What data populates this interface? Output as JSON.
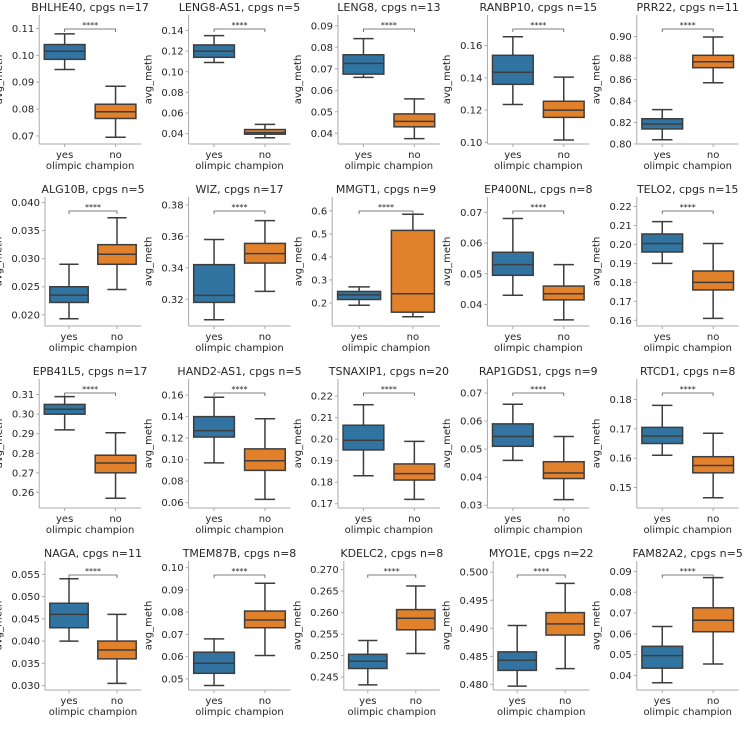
{
  "chart_data": {
    "type": "box",
    "figure_title": "",
    "xlabel": "olimpic champion",
    "ylabel": "avg_meth",
    "categories": [
      "yes",
      "no"
    ],
    "significance_label": "****",
    "colors": {
      "yes": "#3274A1",
      "no": "#E1812C",
      "edge": "#3d3d3d"
    },
    "box_stat_order": [
      "min",
      "q1",
      "median",
      "q3",
      "max"
    ],
    "panels": [
      {
        "title": "BHLHE40, cpgs n=17",
        "yticks": [
          "0.07",
          "0.08",
          "0.09",
          "0.10",
          "0.11"
        ],
        "ylim": [
          0.067,
          0.115
        ],
        "yes": [
          0.0947,
          0.0985,
          0.1015,
          0.104,
          0.108
        ],
        "no": [
          0.0695,
          0.0765,
          0.079,
          0.0818,
          0.0885
        ]
      },
      {
        "title": "LENG8-AS1, cpgs n=5",
        "yticks": [
          "0.04",
          "0.06",
          "0.08",
          "0.10",
          "0.12",
          "0.14"
        ],
        "ylim": [
          0.03,
          0.155
        ],
        "yes": [
          0.109,
          0.114,
          0.12,
          0.126,
          0.135
        ],
        "no": [
          0.036,
          0.0395,
          0.041,
          0.044,
          0.049
        ]
      },
      {
        "title": "LENG8, cpgs n=13",
        "yticks": [
          "0.04",
          "0.05",
          "0.06",
          "0.07",
          "0.08",
          "0.09"
        ],
        "ylim": [
          0.035,
          0.095
        ],
        "yes": [
          0.066,
          0.0675,
          0.0725,
          0.0765,
          0.084
        ],
        "no": [
          0.0375,
          0.043,
          0.0455,
          0.049,
          0.056
        ]
      },
      {
        "title": "RANBP10, cpgs n=15",
        "yticks": [
          "0.10",
          "0.12",
          "0.14",
          "0.16"
        ],
        "ylim": [
          0.099,
          0.179
        ],
        "yes": [
          0.1235,
          0.136,
          0.1435,
          0.154,
          0.1655
        ],
        "no": [
          0.1015,
          0.1155,
          0.12,
          0.1255,
          0.1405
        ]
      },
      {
        "title": "PRR22, cpgs n=11",
        "yticks": [
          "0.80",
          "0.82",
          "0.84",
          "0.86",
          "0.88",
          "0.90"
        ],
        "ylim": [
          0.8,
          0.92
        ],
        "yes": [
          0.804,
          0.814,
          0.8185,
          0.8235,
          0.832
        ],
        "no": [
          0.857,
          0.871,
          0.8765,
          0.8825,
          0.8995
        ]
      },
      {
        "title": "ALG10B, cpgs n=5",
        "yticks": [
          "0.020",
          "0.025",
          "0.030",
          "0.035",
          "0.040"
        ],
        "ylim": [
          0.018,
          0.041
        ],
        "yes": [
          0.0193,
          0.0222,
          0.0235,
          0.025,
          0.029
        ],
        "no": [
          0.0245,
          0.029,
          0.0308,
          0.0325,
          0.0373
        ]
      },
      {
        "title": "WIZ, cpgs n=17",
        "yticks": [
          "0.32",
          "0.34",
          "0.36",
          "0.38"
        ],
        "ylim": [
          0.303,
          0.385
        ],
        "yes": [
          0.307,
          0.318,
          0.3225,
          0.342,
          0.358
        ],
        "no": [
          0.325,
          0.343,
          0.349,
          0.3555,
          0.37
        ]
      },
      {
        "title": "MMGT1, cpgs n=9",
        "yticks": [
          "0.2",
          "0.3",
          "0.4",
          "0.5",
          "0.6"
        ],
        "ylim": [
          0.1,
          0.66
        ],
        "yes": [
          0.19,
          0.215,
          0.235,
          0.25,
          0.27
        ],
        "no": [
          0.14,
          0.16,
          0.24,
          0.515,
          0.585
        ]
      },
      {
        "title": "EP400NL, cpgs n=8",
        "yticks": [
          "0.04",
          "0.05",
          "0.06",
          "0.07"
        ],
        "ylim": [
          0.033,
          0.075
        ],
        "yes": [
          0.043,
          0.0495,
          0.053,
          0.057,
          0.068
        ],
        "no": [
          0.035,
          0.0415,
          0.0435,
          0.046,
          0.053
        ]
      },
      {
        "title": "TELO2, cpgs n=15",
        "yticks": [
          "0.16",
          "0.17",
          "0.18",
          "0.19",
          "0.20",
          "0.21",
          "0.22"
        ],
        "ylim": [
          0.157,
          0.225
        ],
        "yes": [
          0.19,
          0.196,
          0.2005,
          0.2055,
          0.212
        ],
        "no": [
          0.161,
          0.176,
          0.18,
          0.186,
          0.2005
        ]
      },
      {
        "title": "EPB41L5, cpgs n=17",
        "yticks": [
          "0.26",
          "0.27",
          "0.28",
          "0.29",
          "0.30",
          "0.31"
        ],
        "ylim": [
          0.252,
          0.318
        ],
        "yes": [
          0.292,
          0.3,
          0.3025,
          0.305,
          0.309
        ],
        "no": [
          0.257,
          0.27,
          0.275,
          0.279,
          0.2905
        ]
      },
      {
        "title": "HAND2-AS1, cpgs n=5",
        "yticks": [
          "0.06",
          "0.08",
          "0.10",
          "0.12",
          "0.14",
          "0.16"
        ],
        "ylim": [
          0.055,
          0.175
        ],
        "yes": [
          0.097,
          0.121,
          0.127,
          0.14,
          0.158
        ],
        "no": [
          0.063,
          0.09,
          0.099,
          0.11,
          0.138
        ]
      },
      {
        "title": "TSNAXIP1, cpgs n=20",
        "yticks": [
          "0.17",
          "0.18",
          "0.19",
          "0.20",
          "0.21",
          "0.22"
        ],
        "ylim": [
          0.168,
          0.228
        ],
        "yes": [
          0.183,
          0.195,
          0.1995,
          0.2065,
          0.216
        ],
        "no": [
          0.172,
          0.181,
          0.184,
          0.1885,
          0.199
        ]
      },
      {
        "title": "RAP1GDS1, cpgs n=9",
        "yticks": [
          "0.03",
          "0.04",
          "0.05",
          "0.06",
          "0.07"
        ],
        "ylim": [
          0.029,
          0.075
        ],
        "yes": [
          0.046,
          0.051,
          0.0545,
          0.059,
          0.066
        ],
        "no": [
          0.032,
          0.0395,
          0.0415,
          0.0455,
          0.0545
        ]
      },
      {
        "title": "RTCD1, cpgs n=8",
        "yticks": [
          "0.15",
          "0.16",
          "0.17",
          "0.18"
        ],
        "ylim": [
          0.143,
          0.187
        ],
        "yes": [
          0.161,
          0.165,
          0.1675,
          0.1705,
          0.178
        ],
        "no": [
          0.1465,
          0.155,
          0.1575,
          0.1605,
          0.1685
        ]
      },
      {
        "title": "NAGA, cpgs n=11",
        "yticks": [
          "0.030",
          "0.035",
          "0.040",
          "0.045",
          "0.050",
          "0.055"
        ],
        "ylim": [
          0.029,
          0.058
        ],
        "yes": [
          0.04,
          0.043,
          0.046,
          0.0485,
          0.054
        ],
        "no": [
          0.0305,
          0.036,
          0.038,
          0.04,
          0.046
        ]
      },
      {
        "title": "TMEM87B, cpgs n=8",
        "yticks": [
          "0.05",
          "0.06",
          "0.07",
          "0.08",
          "0.09",
          "0.10"
        ],
        "ylim": [
          0.045,
          0.103
        ],
        "yes": [
          0.047,
          0.0525,
          0.057,
          0.062,
          0.068
        ],
        "no": [
          0.0605,
          0.073,
          0.0765,
          0.0805,
          0.093
        ]
      },
      {
        "title": "KDELC2, cpgs n=8",
        "yticks": [
          "0.245",
          "0.250",
          "0.255",
          "0.260",
          "0.265",
          "0.270"
        ],
        "ylim": [
          0.242,
          0.272
        ],
        "yes": [
          0.2432,
          0.247,
          0.2487,
          0.2503,
          0.2535
        ],
        "no": [
          0.2505,
          0.256,
          0.2587,
          0.2607,
          0.2662
        ]
      },
      {
        "title": "MYO1E, cpgs n=22",
        "yticks": [
          "0.480",
          "0.485",
          "0.490",
          "0.495",
          "0.500"
        ],
        "ylim": [
          0.479,
          0.502
        ],
        "yes": [
          0.4797,
          0.4825,
          0.4843,
          0.4858,
          0.4905
        ],
        "no": [
          0.4828,
          0.4888,
          0.4908,
          0.4928,
          0.498
        ]
      },
      {
        "title": "FAM82A2, cpgs n=5",
        "yticks": [
          "0.04",
          "0.05",
          "0.06",
          "0.07",
          "0.08",
          "0.09"
        ],
        "ylim": [
          0.033,
          0.095
        ],
        "yes": [
          0.0365,
          0.0435,
          0.0495,
          0.054,
          0.0635
        ],
        "no": [
          0.0455,
          0.061,
          0.0665,
          0.0725,
          0.087
        ]
      }
    ]
  }
}
